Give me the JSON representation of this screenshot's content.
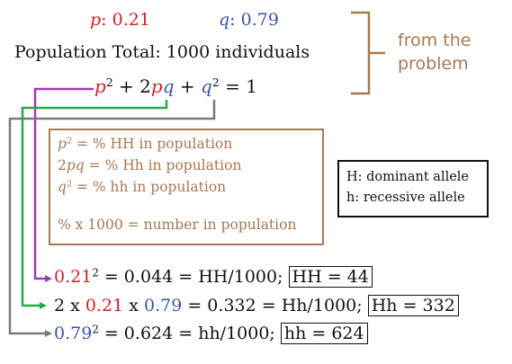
{
  "colors": {
    "p": "#d01f25",
    "q": "#3b53a4",
    "note": "#a87852",
    "purple": "#9b3fb0",
    "green": "#27a84a",
    "gray": "#7a7a7a"
  },
  "header": {
    "p_label": "p",
    "p_sep": ": ",
    "p_value": "0.21",
    "q_label": "q",
    "q_sep": ": ",
    "q_value": "0.79",
    "population_total": "Population Total: 1000 individuals"
  },
  "equation": {
    "p": "p",
    "p_exp": "2",
    "plus1": " + 2",
    "p2": "p",
    "q1": "q",
    "plus2": " + ",
    "q2": "q",
    "q_exp": "2",
    "rhs": " = 1"
  },
  "side_note": {
    "line1": "from the",
    "line2": "problem"
  },
  "definitions": {
    "line1_var": "p",
    "line1_exp": "2",
    "line1_rest": " = % HH in population",
    "line2_pre": "2",
    "line2_var": "pq",
    "line2_rest": " = % Hh in population",
    "line3_var": "q",
    "line3_exp": "2",
    "line3_rest": " = % hh in population",
    "line4": "% x 1000 = number in population"
  },
  "alleles": {
    "dominant": "H: dominant allele",
    "recessive": "h: recessive allele"
  },
  "results": {
    "hh_dom": {
      "base": "0.21",
      "exp": "2",
      "rest": " = 0.044 = HH/1000; ",
      "boxed": "HH = 44"
    },
    "het": {
      "pre": "2 x ",
      "p": "0.21",
      "mid": " x ",
      "q": "0.79",
      "rest": " = 0.332 = Hh/1000; ",
      "boxed": "Hh = 332"
    },
    "hh_rec": {
      "base": "0.79",
      "exp": "2",
      "rest": " = 0.624 = hh/1000; ",
      "boxed": "hh = 624"
    }
  }
}
